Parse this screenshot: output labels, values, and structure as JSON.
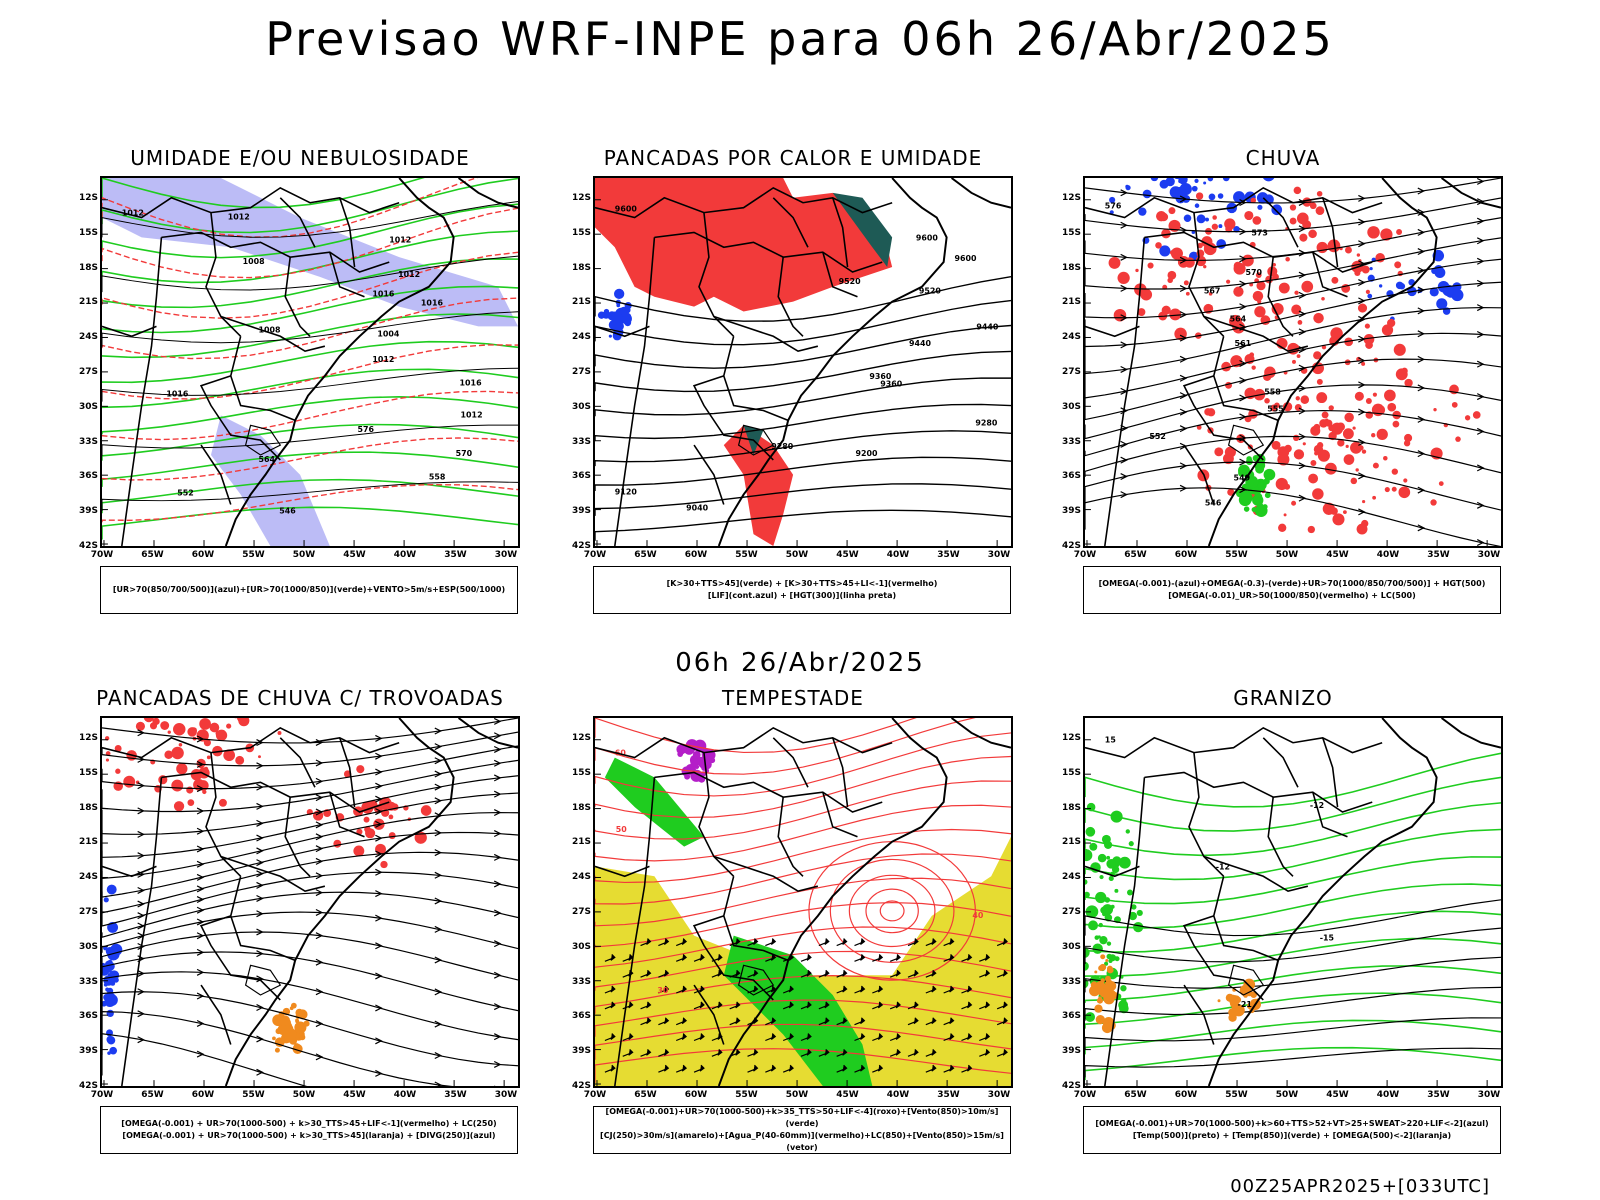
{
  "header": {
    "title": "Previsao WRF-INPE  para 06h 26/Abr/2025",
    "mid_title": "06h 26/Abr/2025",
    "footer": "00Z25APR2025+[033UTC]"
  },
  "axes": {
    "lat_labels": [
      "12S",
      "15S",
      "18S",
      "21S",
      "24S",
      "27S",
      "30S",
      "33S",
      "36S",
      "39S",
      "42S"
    ],
    "lon_labels": [
      "70W",
      "65W",
      "60W",
      "55W",
      "50W",
      "45W",
      "40W",
      "35W",
      "30W"
    ]
  },
  "colors": {
    "humidity_blue": "#9f9ff2",
    "green": "#1fcc1f",
    "red": "#f23a3a",
    "blue": "#1c3cf0",
    "orange": "#f08a1e",
    "yellow": "#e6dc32",
    "darkteal": "#1e5a55",
    "purple": "#b41ec8"
  },
  "panels": [
    {
      "title": "UMIDADE E/OU NEBULOSIDADE",
      "legend": [
        "[UR>70(850/700/500)](azul)+[UR>70(1000/850)](verde)+VENTO>5m/s+ESP(500/1000)"
      ],
      "contour_labels": [
        "1012",
        "1012",
        "1012",
        "1008",
        "1012",
        "1016",
        "1016",
        "1008",
        "1004",
        "1012",
        "1016",
        "1016",
        "1012",
        "576",
        "570",
        "564",
        "558",
        "552",
        "546"
      ]
    },
    {
      "title": "PANCADAS POR CALOR E UMIDADE",
      "legend": [
        "[K>30+TTS>45](verde) + [K>30+TTS>45+LI<-1](vermelho)",
        "[LIF](cont.azul) + [HGT(300)](linha preta)"
      ],
      "contour_labels": [
        "9600",
        "9600",
        "9600",
        "9520",
        "9520",
        "9440",
        "9440",
        "9360",
        "9360",
        "9280",
        "9280",
        "9200",
        "9120",
        "9040"
      ]
    },
    {
      "title": "CHUVA",
      "legend": [
        "[OMEGA(-0.001)-(azul)+OMEGA(-0.3)-(verde)+UR>70(1000/850/700/500)] + HGT(500)",
        "[OMEGA(-0.01)_UR>50(1000/850)(vermelho) + LC(500)"
      ],
      "contour_labels": [
        "576",
        "573",
        "570",
        "567",
        "564",
        "561",
        "558",
        "555",
        "552",
        "549",
        "546"
      ]
    },
    {
      "title": "PANCADAS DE CHUVA C/ TROVOADAS",
      "legend": [
        "[OMEGA(-0.001) + UR>70(1000-500) + k>30_TTS>45+LIF<-1](vermelho) + LC(250)",
        "[OMEGA(-0.001) + UR>70(1000-500) + k>30_TTS>45](laranja) + [DIVG(250)](azul)"
      ],
      "contour_labels": []
    },
    {
      "title": "TEMPESTADE",
      "legend": [
        "[OMEGA(-0.001)+UR>70(1000-500)+k>35_TTS>50+LIF<-4](roxo)+[Vento(850)>10m/s](verde)",
        "[CJ(250)>30m/s](amarelo)+[Agua_P(40-60mm)](vermelho)+LC(850)+[Vento(850)>15m/s](vetor)"
      ],
      "contour_labels": [
        "60",
        "50",
        "40",
        "30"
      ]
    },
    {
      "title": "GRANIZO",
      "legend": [
        "[OMEGA(-0.001)+UR>70(1000-500)+k>60+TTS>52+VT>25+SWEAT>220+LIF<-2](azul)",
        "[Temp(500)](preto) + [Temp(850)](verde) + [OMEGA(500)<-2](laranja)"
      ],
      "contour_labels": [
        "15",
        "-12",
        "-12",
        "-15",
        "-21"
      ]
    }
  ]
}
